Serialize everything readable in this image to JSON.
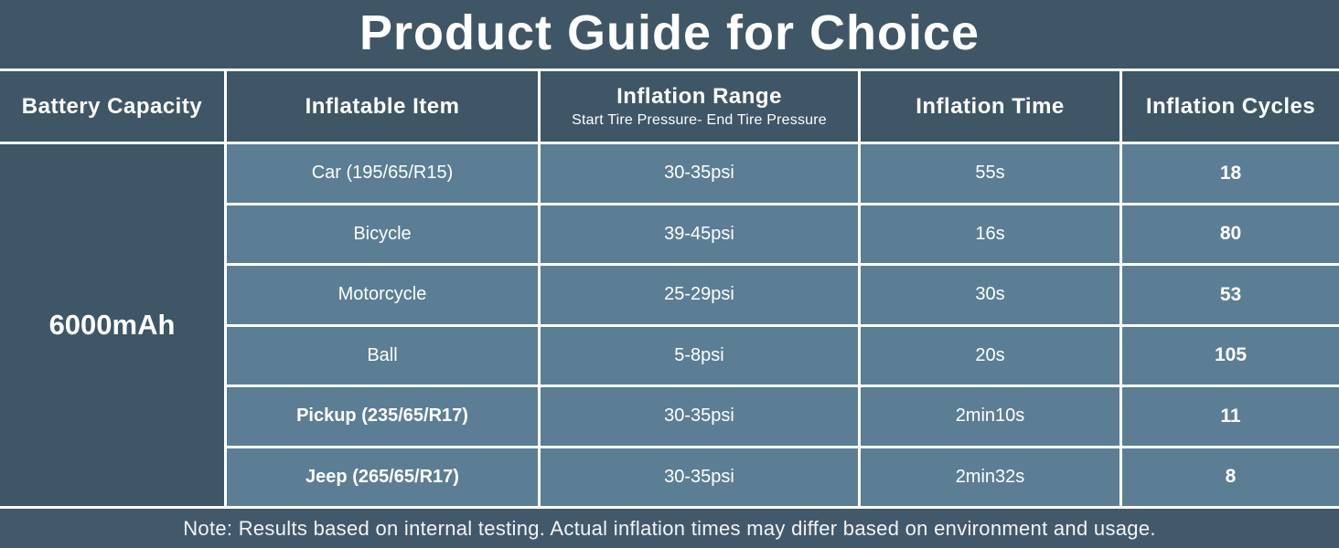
{
  "title": "Product Guide for Choice",
  "table": {
    "headers": [
      "Battery Capacity",
      "Inflatable Item",
      "Inflation Range",
      "Inflation Time",
      "Inflation Cycles"
    ],
    "inflation_range_subtitle": "Start Tire Pressure- End Tire Pressure",
    "battery_capacity": "6000mAh",
    "rows": [
      {
        "item": "Car (195/65/R15)",
        "range": "30-35psi",
        "time": "55s",
        "cycles": "18"
      },
      {
        "item": "Bicycle",
        "range": "39-45psi",
        "time": "16s",
        "cycles": "80"
      },
      {
        "item": "Motorcycle",
        "range": "25-29psi",
        "time": "30s",
        "cycles": "53"
      },
      {
        "item": "Ball",
        "range": "5-8psi",
        "time": "20s",
        "cycles": "105"
      },
      {
        "item": "Pickup (235/65/R17)",
        "range": "30-35psi",
        "time": "2min10s",
        "cycles": "11"
      },
      {
        "item": "Jeep (265/65/R17)",
        "range": "30-35psi",
        "time": "2min32s",
        "cycles": "8"
      }
    ]
  },
  "note": "Note: Results based on internal testing. Actual inflation times may differ based on environment and usage.",
  "colors": {
    "dark_slate": "#3e5666",
    "row_blue": "#5b7e94",
    "note_bar": "#42596b",
    "divider": "#ffffff",
    "text": "#ffffff"
  }
}
